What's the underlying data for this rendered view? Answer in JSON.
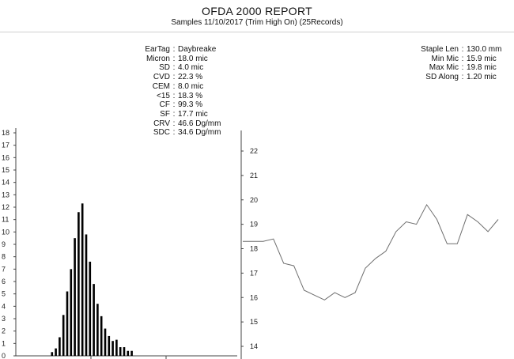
{
  "report": {
    "title": "OFDA 2000 REPORT",
    "subtitle": "Samples 11/10/2017 (Trim High On) (25Records)"
  },
  "stats_left": [
    {
      "key": "EarTag",
      "value": "Daybreake"
    },
    {
      "key": "Micron",
      "value": "18.0 mic"
    },
    {
      "key": "SD",
      "value": "4.0 mic"
    },
    {
      "key": "CVD",
      "value": "22.3 %"
    },
    {
      "key": "CEM",
      "value": "8.0 mic"
    },
    {
      "key": "<15",
      "value": "18.3 %"
    },
    {
      "key": "CF",
      "value": "99.3 %"
    },
    {
      "key": "SF",
      "value": "17.7 mic"
    },
    {
      "key": "CRV",
      "value": "46.6 Dg/mm"
    },
    {
      "key": "SDC",
      "value": "34.6 Dg/mm"
    }
  ],
  "stats_right": [
    {
      "key": "Staple Len",
      "value": "130.0 mm"
    },
    {
      "key": "Min Mic",
      "value": "15.9 mic"
    },
    {
      "key": "Max Mic",
      "value": "19.8 mic"
    },
    {
      "key": "SD Along",
      "value": "1.20 mic"
    }
  ],
  "chart_data": [
    {
      "type": "bar",
      "ylim": [
        0,
        18
      ],
      "y_ticks": [
        0,
        1,
        2,
        3,
        4,
        5,
        6,
        7,
        8,
        9,
        10,
        11,
        12,
        13,
        14,
        15,
        16,
        17,
        18
      ],
      "values": [
        0.3,
        0.6,
        1.5,
        3.3,
        5.2,
        7.0,
        9.5,
        11.6,
        12.3,
        9.8,
        7.6,
        5.8,
        4.2,
        3.2,
        2.2,
        1.6,
        1.2,
        1.3,
        0.7,
        0.7,
        0.4,
        0.4
      ],
      "bar_color": "#000000"
    },
    {
      "type": "line",
      "ylim": [
        13.7,
        22.6
      ],
      "y_ticks": [
        14,
        15,
        16,
        17,
        18,
        19,
        20,
        21,
        22
      ],
      "values": [
        18.3,
        18.3,
        18.3,
        18.4,
        17.4,
        17.3,
        16.3,
        16.1,
        15.9,
        16.2,
        16.0,
        16.2,
        17.2,
        17.6,
        17.9,
        18.7,
        19.1,
        19.0,
        19.8,
        19.2,
        18.2,
        18.2,
        19.4,
        19.1,
        18.7,
        19.2
      ],
      "line_color": "#6e6e6e"
    }
  ]
}
